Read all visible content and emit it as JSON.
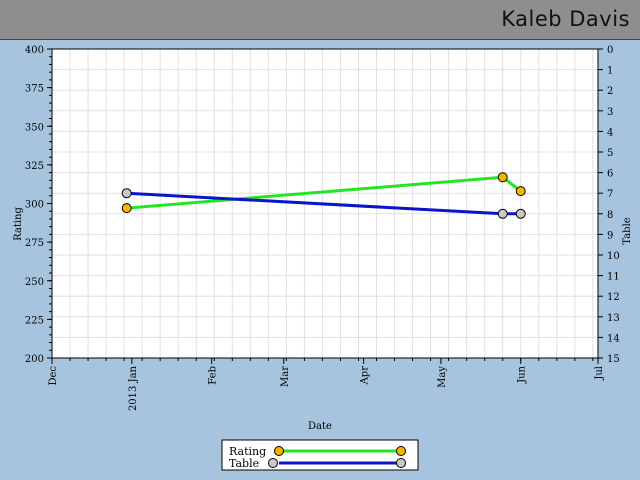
{
  "header": {
    "player_name": "Kaleb Davis"
  },
  "chart_data": {
    "type": "line",
    "xlabel": "Date",
    "ylabel_left": "Rating",
    "ylabel_right": "Table",
    "x_range": [
      "2012-12-01",
      "2013-07-01"
    ],
    "x_ticks": [
      {
        "date": "2012-12-01",
        "label": "Dec"
      },
      {
        "date": "2013-01-01",
        "label": "2013 Jan"
      },
      {
        "date": "2013-02-01",
        "label": "Feb"
      },
      {
        "date": "2013-03-01",
        "label": "Mar"
      },
      {
        "date": "2013-04-01",
        "label": "Apr"
      },
      {
        "date": "2013-05-01",
        "label": "May"
      },
      {
        "date": "2013-06-01",
        "label": "Jun"
      },
      {
        "date": "2013-07-01",
        "label": "Jul"
      }
    ],
    "y_left": {
      "min": 200,
      "max": 400,
      "ticks": [
        200,
        225,
        250,
        275,
        300,
        325,
        350,
        375,
        400
      ]
    },
    "y_right": {
      "min": 0,
      "max": 15,
      "inverted": true,
      "ticks": [
        0,
        1,
        2,
        3,
        4,
        5,
        6,
        7,
        8,
        9,
        10,
        11,
        12,
        13,
        14,
        15
      ]
    },
    "grid": true,
    "legend_position": "bottom-center",
    "series": [
      {
        "name": "Rating",
        "axis": "left",
        "line_color": "#22e622",
        "marker_color": "#f5b400",
        "points": [
          {
            "x": "2012-12-30",
            "y": 297
          },
          {
            "x": "2013-05-25",
            "y": 317
          },
          {
            "x": "2013-06-01",
            "y": 308
          }
        ]
      },
      {
        "name": "Table",
        "axis": "right",
        "line_color": "#0a14cc",
        "marker_color": "#c8c8c8",
        "points": [
          {
            "x": "2012-12-30",
            "y": 7
          },
          {
            "x": "2013-05-25",
            "y": 8
          },
          {
            "x": "2013-06-01",
            "y": 8
          }
        ]
      }
    ]
  }
}
